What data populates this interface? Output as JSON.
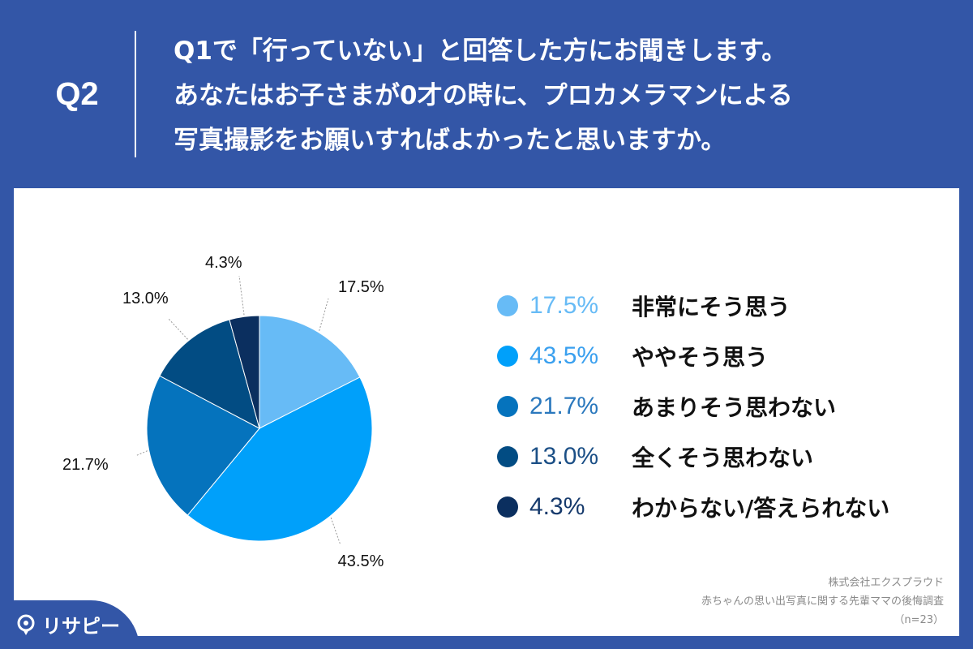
{
  "header": {
    "question_number": "Q2",
    "question_lines": [
      "Q1で「行っていない」と回答した方にお聞きします。",
      "あなたはお子さまが0才の時に、プロカメラマンによる",
      "写真撮影をお願いすればよかったと思いますか。"
    ]
  },
  "chart_data": {
    "type": "pie",
    "title": "",
    "categories": [
      "非常にそう思う",
      "ややそう思う",
      "あまりそう思わない",
      "全くそう思わない",
      "わからない/答えられない"
    ],
    "values": [
      17.5,
      43.5,
      21.7,
      13.0,
      4.3
    ],
    "value_labels": [
      "17.5%",
      "43.5%",
      "21.7%",
      "13.0%",
      "4.3%"
    ],
    "colors": [
      "#67bbf6",
      "#00a0fa",
      "#0573bd",
      "#024c83",
      "#0b2f5f"
    ],
    "legend_text_colors": [
      "#67bbf6",
      "#3aa0ef",
      "#2a78bd",
      "#1b4f86",
      "#163a6c"
    ],
    "legend_placement": "right",
    "start_angle": "12 o'clock",
    "direction": "clockwise"
  },
  "credit": {
    "company": "株式会社エクスプラウド",
    "survey": "赤ちゃんの思い出写真に関する先輩ママの後悔調査",
    "sample": "（n=23）"
  },
  "logo": {
    "text": "リサピー",
    "icon": "location-pin-icon"
  }
}
